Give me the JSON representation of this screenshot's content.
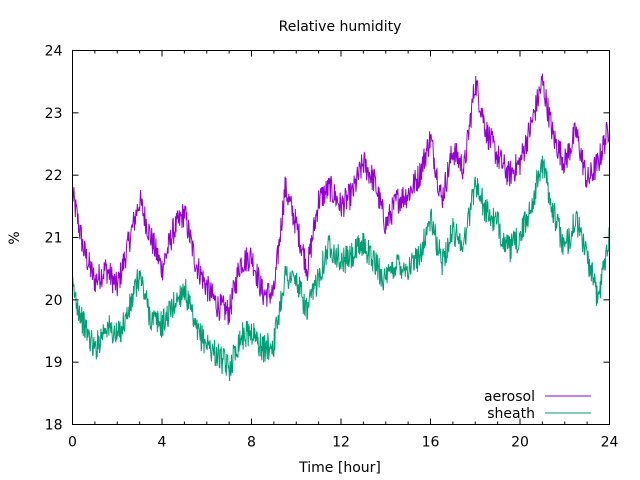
{
  "chart_data": {
    "type": "line",
    "title": "Relative humidity",
    "xlabel": "Time [hour]",
    "ylabel": "%",
    "xlim": [
      0,
      24
    ],
    "ylim": [
      18,
      24
    ],
    "x_ticks": [
      0,
      4,
      8,
      12,
      16,
      20,
      24
    ],
    "y_ticks": [
      18,
      19,
      20,
      21,
      22,
      23,
      24
    ],
    "grid": false,
    "legend_position": "bottom-right",
    "series": [
      {
        "name": "aerosol",
        "color": "#9400d3",
        "x": [
          0,
          0.5,
          1,
          1.5,
          2,
          2.5,
          3,
          3.5,
          4,
          4.5,
          5,
          5.5,
          6,
          6.5,
          7,
          7.5,
          8,
          8.5,
          9,
          9.5,
          10,
          10.5,
          11,
          11.5,
          12,
          12.5,
          13,
          13.5,
          14,
          14.5,
          15,
          15.5,
          16,
          16.5,
          17,
          17.5,
          18,
          18.5,
          19,
          19.5,
          20,
          20.5,
          21,
          21.5,
          22,
          22.5,
          23,
          23.5,
          24
        ],
        "values": [
          21.7,
          20.8,
          20.3,
          20.5,
          20.2,
          20.9,
          21.6,
          21.0,
          20.5,
          21.1,
          21.4,
          20.6,
          20.2,
          19.9,
          19.8,
          20.6,
          20.7,
          20.1,
          20.1,
          21.8,
          21.2,
          20.5,
          21.6,
          21.8,
          21.5,
          21.7,
          22.2,
          21.9,
          21.2,
          21.6,
          21.7,
          22.0,
          22.6,
          21.6,
          22.4,
          22.1,
          23.5,
          22.7,
          22.3,
          22.0,
          22.2,
          22.8,
          23.5,
          22.6,
          22.2,
          22.7,
          21.9,
          22.2,
          22.8
        ]
      },
      {
        "name": "sheath",
        "color": "#009e73",
        "x": [
          0,
          0.5,
          1,
          1.5,
          2,
          2.5,
          3,
          3.5,
          4,
          4.5,
          5,
          5.5,
          6,
          6.5,
          7,
          7.5,
          8,
          8.5,
          9,
          9.5,
          10,
          10.5,
          11,
          11.5,
          12,
          12.5,
          13,
          13.5,
          14,
          14.5,
          15,
          15.5,
          16,
          16.5,
          17,
          17.5,
          18,
          18.5,
          19,
          19.5,
          20,
          20.5,
          21,
          21.5,
          22,
          22.5,
          23,
          23.5,
          24
        ],
        "values": [
          20.2,
          19.6,
          19.2,
          19.6,
          19.4,
          19.8,
          20.4,
          19.7,
          19.6,
          19.9,
          20.2,
          19.5,
          19.3,
          19.1,
          18.9,
          19.4,
          19.5,
          19.2,
          19.3,
          20.4,
          20.3,
          19.8,
          20.4,
          20.9,
          20.6,
          20.7,
          20.9,
          20.6,
          20.3,
          20.6,
          20.5,
          20.7,
          21.3,
          20.6,
          21.1,
          20.9,
          21.9,
          21.4,
          21.2,
          20.8,
          21.0,
          21.5,
          22.2,
          21.4,
          20.8,
          21.3,
          20.7,
          20.0,
          21.1
        ]
      }
    ]
  }
}
